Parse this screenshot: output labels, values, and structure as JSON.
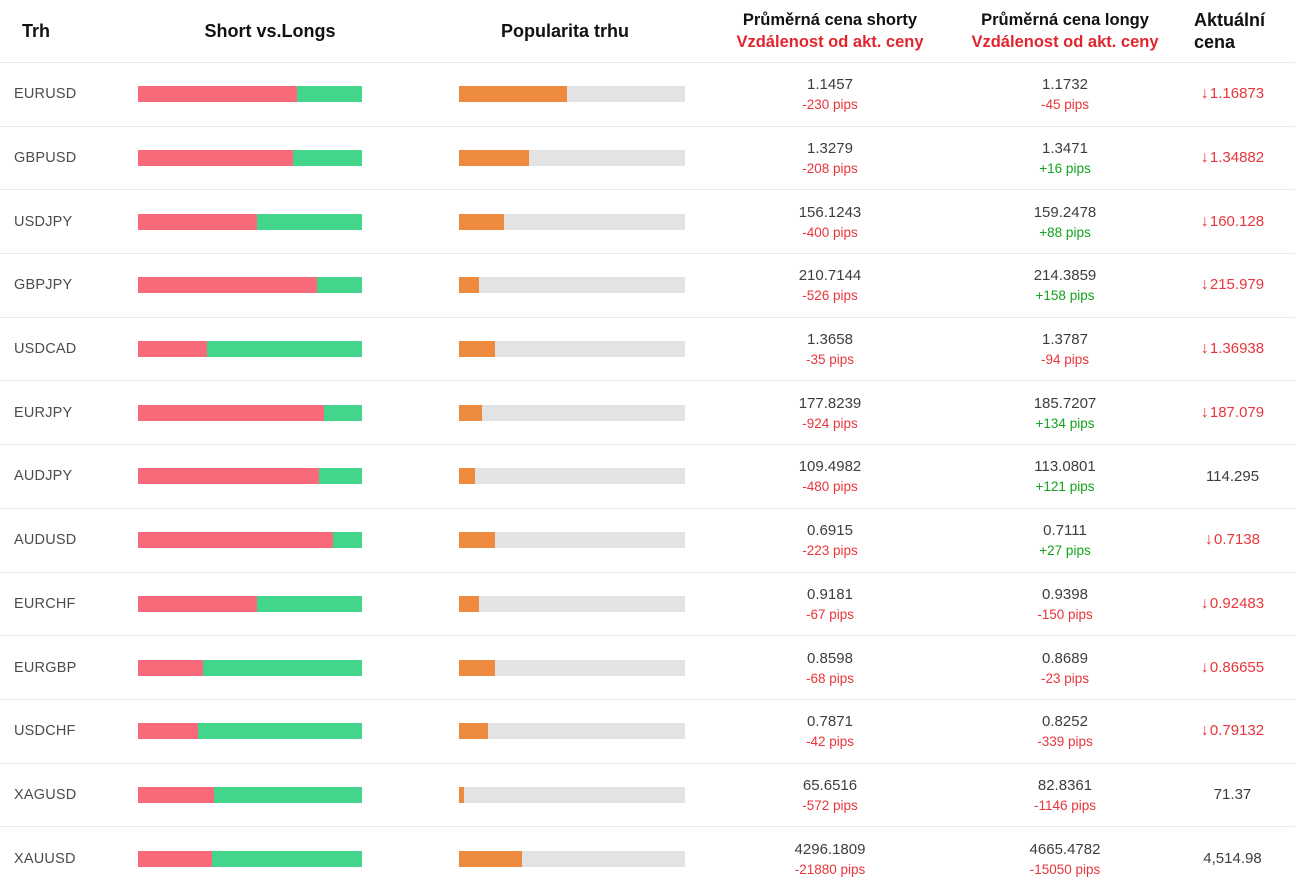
{
  "header": {
    "col_market": "Trh",
    "col_shorts_longs": "Short vs.Longs",
    "col_popularity": "Popularita trhu",
    "col_short_price_line1": "Průměrná cena shorty",
    "col_short_price_line2": "Vzdálenost od akt. ceny",
    "col_long_price_line1": "Průměrná cena longy",
    "col_long_price_line2": "Vzdálenost od akt. ceny",
    "col_current_line1": "Aktuální",
    "col_current_line2": "cena"
  },
  "colors": {
    "short_bar": "#f8697a",
    "long_bar": "#43d58c",
    "popularity_bar": "#ee8a3e",
    "bar_track": "#e3e3e3",
    "negative": "#e8363d",
    "positive": "#14a31c",
    "header_red": "#e0252e"
  },
  "chart_data": {
    "type": "table",
    "title": "Short vs. Longs market sentiment table",
    "columns": [
      "Trh",
      "Short vs.Longs",
      "Popularita trhu",
      "Průměrná cena shorty / Vzdálenost od akt. ceny",
      "Průměrná cena longy / Vzdálenost od akt. ceny",
      "Aktuální cena"
    ],
    "rows": [
      {
        "market": "EURUSD",
        "short_pct": 71,
        "long_pct": 29,
        "popularity_pct": 48,
        "short_price": "1.1457",
        "short_pips": "-230 pips",
        "short_pips_dir": "neg",
        "long_price": "1.1732",
        "long_pips": "-45 pips",
        "long_pips_dir": "neg",
        "current_price": "1.16873",
        "current_dir": "down"
      },
      {
        "market": "GBPUSD",
        "short_pct": 69,
        "long_pct": 31,
        "popularity_pct": 31,
        "short_price": "1.3279",
        "short_pips": "-208 pips",
        "short_pips_dir": "neg",
        "long_price": "1.3471",
        "long_pips": "+16 pips",
        "long_pips_dir": "pos",
        "current_price": "1.34882",
        "current_dir": "down"
      },
      {
        "market": "USDJPY",
        "short_pct": 53,
        "long_pct": 47,
        "popularity_pct": 20,
        "short_price": "156.1243",
        "short_pips": "-400 pips",
        "short_pips_dir": "neg",
        "long_price": "159.2478",
        "long_pips": "+88 pips",
        "long_pips_dir": "pos",
        "current_price": "160.128",
        "current_dir": "down"
      },
      {
        "market": "GBPJPY",
        "short_pct": 80,
        "long_pct": 20,
        "popularity_pct": 9,
        "short_price": "210.7144",
        "short_pips": "-526 pips",
        "short_pips_dir": "neg",
        "long_price": "214.3859",
        "long_pips": "+158 pips",
        "long_pips_dir": "pos",
        "current_price": "215.979",
        "current_dir": "down"
      },
      {
        "market": "USDCAD",
        "short_pct": 31,
        "long_pct": 69,
        "popularity_pct": 16,
        "short_price": "1.3658",
        "short_pips": "-35 pips",
        "short_pips_dir": "neg",
        "long_price": "1.3787",
        "long_pips": "-94 pips",
        "long_pips_dir": "neg",
        "current_price": "1.36938",
        "current_dir": "down"
      },
      {
        "market": "EURJPY",
        "short_pct": 83,
        "long_pct": 17,
        "popularity_pct": 10,
        "short_price": "177.8239",
        "short_pips": "-924 pips",
        "short_pips_dir": "neg",
        "long_price": "185.7207",
        "long_pips": "+134 pips",
        "long_pips_dir": "pos",
        "current_price": "187.079",
        "current_dir": "down"
      },
      {
        "market": "AUDJPY",
        "short_pct": 81,
        "long_pct": 19,
        "popularity_pct": 7,
        "short_price": "109.4982",
        "short_pips": "-480 pips",
        "short_pips_dir": "neg",
        "long_price": "113.0801",
        "long_pips": "+121 pips",
        "long_pips_dir": "pos",
        "current_price": "114.295",
        "current_dir": "none"
      },
      {
        "market": "AUDUSD",
        "short_pct": 87,
        "long_pct": 13,
        "popularity_pct": 16,
        "short_price": "0.6915",
        "short_pips": "-223 pips",
        "short_pips_dir": "neg",
        "long_price": "0.7111",
        "long_pips": "+27 pips",
        "long_pips_dir": "pos",
        "current_price": "0.7138",
        "current_dir": "down"
      },
      {
        "market": "EURCHF",
        "short_pct": 53,
        "long_pct": 47,
        "popularity_pct": 9,
        "short_price": "0.9181",
        "short_pips": "-67 pips",
        "short_pips_dir": "neg",
        "long_price": "0.9398",
        "long_pips": "-150 pips",
        "long_pips_dir": "neg",
        "current_price": "0.92483",
        "current_dir": "down"
      },
      {
        "market": "EURGBP",
        "short_pct": 29,
        "long_pct": 71,
        "popularity_pct": 16,
        "short_price": "0.8598",
        "short_pips": "-68 pips",
        "short_pips_dir": "neg",
        "long_price": "0.8689",
        "long_pips": "-23 pips",
        "long_pips_dir": "neg",
        "current_price": "0.86655",
        "current_dir": "down"
      },
      {
        "market": "USDCHF",
        "short_pct": 27,
        "long_pct": 73,
        "popularity_pct": 13,
        "short_price": "0.7871",
        "short_pips": "-42 pips",
        "short_pips_dir": "neg",
        "long_price": "0.8252",
        "long_pips": "-339 pips",
        "long_pips_dir": "neg",
        "current_price": "0.79132",
        "current_dir": "down"
      },
      {
        "market": "XAGUSD",
        "short_pct": 34,
        "long_pct": 66,
        "popularity_pct": 2,
        "short_price": "65.6516",
        "short_pips": "-572 pips",
        "short_pips_dir": "neg",
        "long_price": "82.8361",
        "long_pips": "-1146 pips",
        "long_pips_dir": "neg",
        "current_price": "71.37",
        "current_dir": "none"
      },
      {
        "market": "XAUUSD",
        "short_pct": 33,
        "long_pct": 67,
        "popularity_pct": 28,
        "short_price": "4296.1809",
        "short_pips": "-21880 pips",
        "short_pips_dir": "neg",
        "long_price": "4665.4782",
        "long_pips": "-15050 pips",
        "long_pips_dir": "neg",
        "current_price": "4,514.98",
        "current_dir": "none"
      }
    ]
  }
}
